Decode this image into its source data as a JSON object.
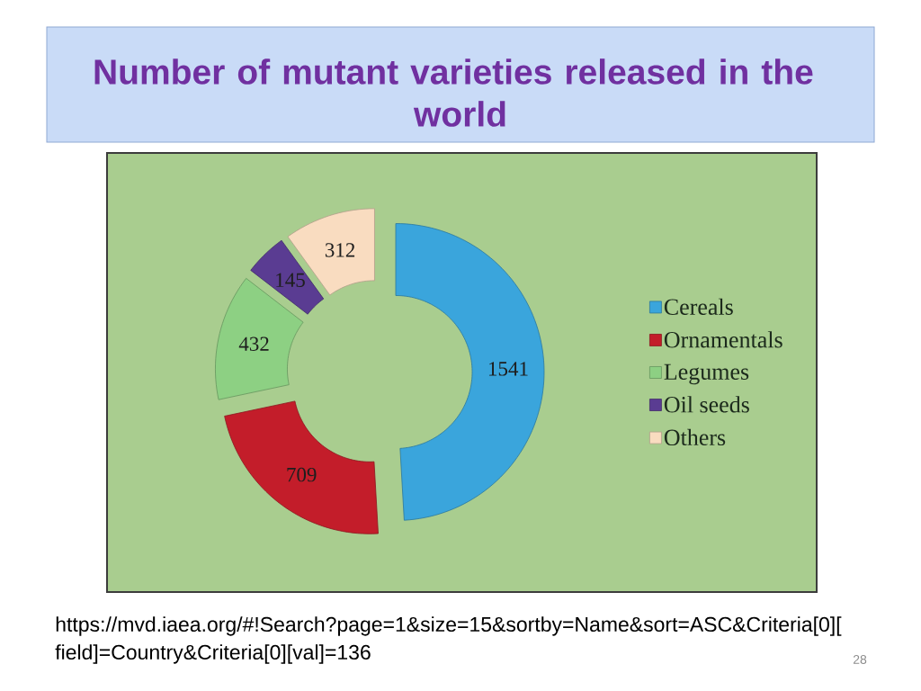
{
  "chart_data": {
    "type": "donut",
    "title": "Number of mutant varieties released in the world",
    "categories": [
      "Cereals",
      "Ornamentals",
      "Legumes",
      "Oil seeds",
      "Others"
    ],
    "values": [
      1541,
      709,
      432,
      145,
      312
    ],
    "colors": [
      "#3aa5dc",
      "#c31d2a",
      "#8dd083",
      "#5a3c92",
      "#f9dcc0"
    ],
    "data_labels": true,
    "legend": "right",
    "annotations": [
      "https://mvd.iaea.org/#!Search?page=1&size=15&sortby=Name&sort=ASC&Criteria[0][field]=Country&Criteria[0][val]=136",
      "28"
    ]
  }
}
